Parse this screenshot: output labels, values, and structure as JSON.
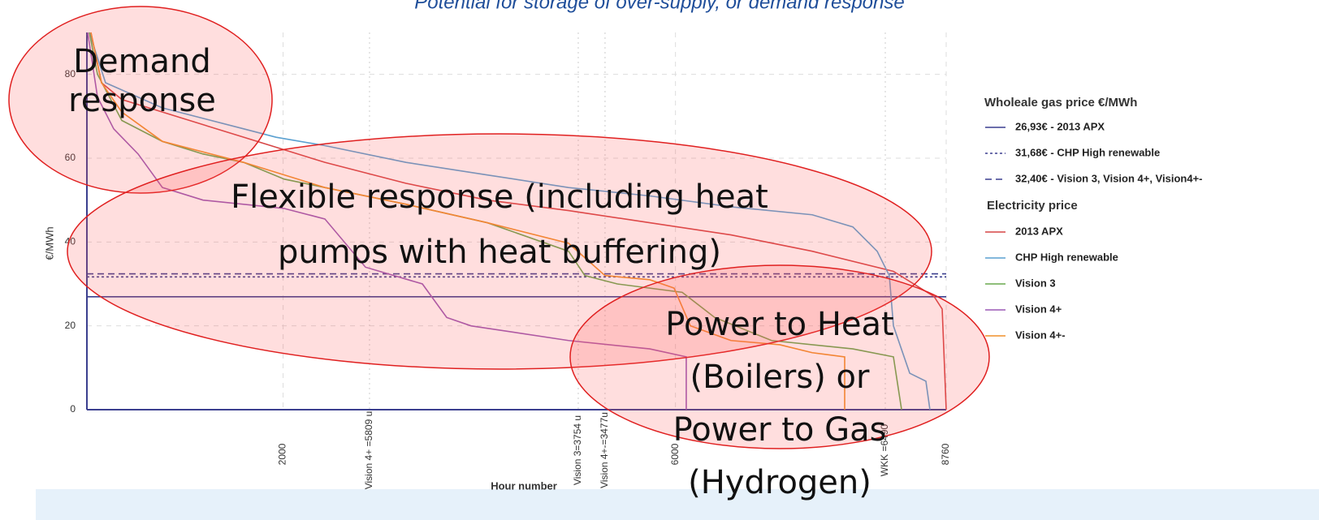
{
  "chart_data": {
    "type": "line",
    "title": "Potential for storage of over-supply, or demand response",
    "x_label": "Hour number",
    "y_label": "€/MWh",
    "xlim": [
      0,
      8760
    ],
    "xticks": [
      2000,
      6000,
      8760
    ],
    "ylim": [
      0,
      90
    ],
    "yticks": [
      0,
      20,
      40,
      60,
      80
    ],
    "grid": true,
    "x_markers": [
      {
        "value": 2881,
        "label": "Vision 4+ =5809 u"
      },
      {
        "value": 5009,
        "label": "Vision 3=3754 u"
      },
      {
        "value": 5282,
        "label": "Vision 4+-=3477u"
      },
      {
        "value": 8139,
        "label": "WKK =6490"
      }
    ],
    "gas_heading": "Wholeale gas price €/MWh",
    "gas_prices": [
      {
        "name": "26,93€ - 2013 APX",
        "value": 26.93,
        "color": "#3b3f8f",
        "dash": "solid"
      },
      {
        "name": "31,68€ - CHP High renewable",
        "value": 31.68,
        "color": "#3b3f8f",
        "dash": "dotted"
      },
      {
        "name": "32,40€ - Vision 3, Vision 4+, Vision4+-",
        "value": 32.4,
        "color": "#3b3f8f",
        "dash": "dashed"
      }
    ],
    "series_heading": "Electricity price",
    "series": [
      {
        "name": "2013 APX",
        "color": "#d64545",
        "x": [
          41,
          149,
          356,
          770,
          1598,
          2426,
          3254,
          4082,
          4910,
          5738,
          6566,
          7394,
          8222,
          8636,
          8719,
          8760
        ],
        "values": [
          90,
          78,
          74,
          71,
          65,
          59,
          54,
          50,
          47.5,
          44.6,
          41.7,
          37.8,
          33,
          27,
          24,
          0
        ]
      },
      {
        "name": "CHP High renewable",
        "color": "#5aa0d0",
        "x": [
          25,
          190,
          770,
          1598,
          1929,
          2426,
          3254,
          4082,
          4910,
          5738,
          6566,
          7394,
          7808,
          8056,
          8180,
          8222,
          8388,
          8553,
          8594
        ],
        "values": [
          90,
          78,
          72,
          67,
          65,
          63,
          59,
          56,
          53,
          51,
          48.4,
          46.5,
          43.6,
          37.8,
          32,
          20,
          8.7,
          6.8,
          0
        ]
      },
      {
        "name": "Vision 3",
        "color": "#6aa84f",
        "x": [
          25,
          108,
          356,
          770,
          1184,
          1598,
          2012,
          2426,
          3254,
          4082,
          4910,
          5076,
          5407,
          6069,
          6400,
          6980,
          7808,
          8222,
          8305
        ],
        "values": [
          90,
          80,
          69,
          64,
          61,
          59,
          55,
          53,
          49,
          44.6,
          37.8,
          32,
          30,
          28,
          22,
          16.5,
          14.5,
          12.6,
          0
        ]
      },
      {
        "name": "Vision 4+",
        "color": "#9b59b6",
        "x": [
          8,
          108,
          273,
          522,
          770,
          1184,
          2012,
          2426,
          2840,
          3420,
          3668,
          3916,
          4910,
          5738,
          6110,
          6110
        ],
        "values": [
          90,
          74.6,
          67,
          61,
          53,
          50,
          48,
          45.5,
          34,
          30,
          22,
          20,
          16.5,
          14.5,
          12.6,
          0
        ]
      },
      {
        "name": "Vision 4+-",
        "color": "#f0902a",
        "x": [
          41,
          149,
          356,
          770,
          1598,
          2426,
          3254,
          4082,
          4910,
          5282,
          5738,
          5986,
          6152,
          6566,
          7063,
          7394,
          7725,
          7725
        ],
        "values": [
          90,
          78,
          71,
          64,
          59,
          53,
          49,
          44.6,
          39.7,
          32,
          31,
          29,
          20,
          16.5,
          15.5,
          13.6,
          12.6,
          0
        ]
      }
    ],
    "annotations": [
      {
        "lines": [
          "Demand",
          "response"
        ]
      },
      {
        "lines": [
          "Flexible response (including heat",
          "pumps with heat buffering)"
        ]
      },
      {
        "lines": [
          "Power to Heat",
          "(Boilers) or",
          "Power to Gas",
          "(Hydrogen)"
        ]
      }
    ]
  }
}
